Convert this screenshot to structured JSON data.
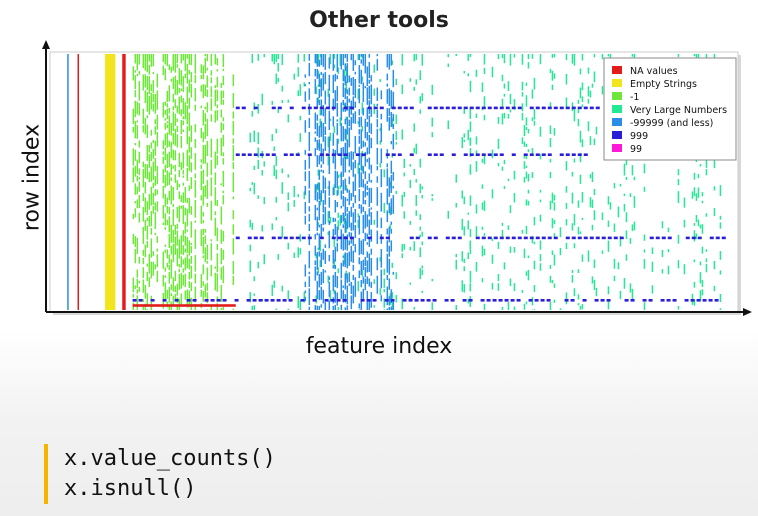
{
  "slide": {
    "title": "Other tools",
    "code_lines": [
      "x.value_counts()",
      "x.isnull()"
    ]
  },
  "chart_data": {
    "type": "heatmap",
    "title": "",
    "xlabel": "feature index",
    "ylabel": "row index",
    "grid": false,
    "legend_position": "top-right",
    "legend": [
      {
        "label": "NA values",
        "color": "#e21b1b"
      },
      {
        "label": "Empty Strings",
        "color": "#f2e51d"
      },
      {
        "label": "-1",
        "color": "#6fe63c"
      },
      {
        "label": "Very Large Numbers",
        "color": "#22ea94"
      },
      {
        "label": "-99999 (and less)",
        "color": "#2a8de6"
      },
      {
        "label": "999",
        "color": "#2a1fd6"
      },
      {
        "label": "99",
        "color": "#ff18d8"
      }
    ],
    "axis_range_fraction": {
      "x": [
        0,
        1
      ],
      "y": [
        0,
        1
      ]
    },
    "bands": [
      {
        "category": "-99999 (and less)",
        "x_range": [
          0.025,
          0.027
        ],
        "coverage": "full"
      },
      {
        "category": "NA values",
        "x_range": [
          0.04,
          0.042
        ],
        "coverage": "full"
      },
      {
        "category": "Empty Strings",
        "x_range": [
          0.08,
          0.095
        ],
        "coverage": "full"
      },
      {
        "category": "NA values",
        "x_range": [
          0.105,
          0.11
        ],
        "coverage": "full"
      },
      {
        "category": "-1",
        "x_range": [
          0.12,
          0.27
        ],
        "coverage": "dense"
      },
      {
        "category": "NA values",
        "x_range": [
          0.12,
          0.27
        ],
        "y_range": [
          0.02,
          0.03
        ],
        "coverage": "full"
      },
      {
        "category": "Very Large Numbers",
        "x_range": [
          0.29,
          0.61
        ],
        "coverage": "sparse"
      },
      {
        "category": "-99999 (and less)",
        "x_range": [
          0.37,
          0.5
        ],
        "coverage": "dense"
      },
      {
        "category": "Very Large Numbers",
        "x_range": [
          0.61,
          0.98
        ],
        "coverage": "sparse"
      },
      {
        "category": "999",
        "x_range": [
          0.27,
          0.98
        ],
        "y_range": [
          0.78,
          0.79
        ],
        "coverage": "dashed"
      },
      {
        "category": "999",
        "x_range": [
          0.27,
          0.98
        ],
        "y_range": [
          0.6,
          0.61
        ],
        "coverage": "dashed"
      },
      {
        "category": "999",
        "x_range": [
          0.27,
          0.98
        ],
        "y_range": [
          0.28,
          0.29
        ],
        "coverage": "dashed"
      },
      {
        "category": "999",
        "x_range": [
          0.12,
          0.98
        ],
        "y_range": [
          0.04,
          0.05
        ],
        "coverage": "dashed"
      }
    ]
  }
}
